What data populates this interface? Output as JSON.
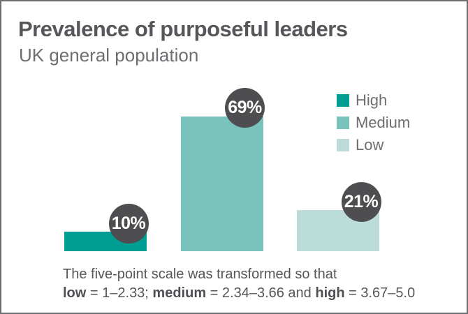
{
  "title": "Prevalence of purposeful leaders",
  "subtitle": "UK general population",
  "colors": {
    "high": "#009e92",
    "medium": "#7ac3bd",
    "low": "#bcdcd9",
    "badge_bg": "#4e4e50",
    "badge_text": "#ffffff",
    "title_text": "#56575b",
    "muted_text": "#6d6e71",
    "border": "#6d6e71"
  },
  "chart_data": {
    "type": "bar",
    "categories": [
      "High",
      "Medium",
      "Low"
    ],
    "values": [
      10,
      69,
      21
    ],
    "data_labels": [
      "10%",
      "69%",
      "21%"
    ],
    "series_color_keys": [
      "high",
      "medium",
      "low"
    ],
    "title": "Prevalence of purposeful leaders",
    "subtitle": "UK general population",
    "xlabel": "",
    "ylabel": "",
    "ylim": [
      0,
      100
    ],
    "grid": false,
    "axes_visible": false,
    "legend_position": "right",
    "unit": "%"
  },
  "legend": {
    "items": [
      {
        "label": "High",
        "color_key": "high"
      },
      {
        "label": "Medium",
        "color_key": "medium"
      },
      {
        "label": "Low",
        "color_key": "low"
      }
    ]
  },
  "footnote": {
    "line1": "The five-point scale was transformed so that",
    "line2_parts": [
      {
        "text": "low",
        "bold": true
      },
      {
        "text": " = 1–2.33; ",
        "bold": false
      },
      {
        "text": "medium",
        "bold": true
      },
      {
        "text": " = 2.34–3.66 and ",
        "bold": false
      },
      {
        "text": "high",
        "bold": true
      },
      {
        "text": " = 3.67–5.0",
        "bold": false
      }
    ]
  }
}
